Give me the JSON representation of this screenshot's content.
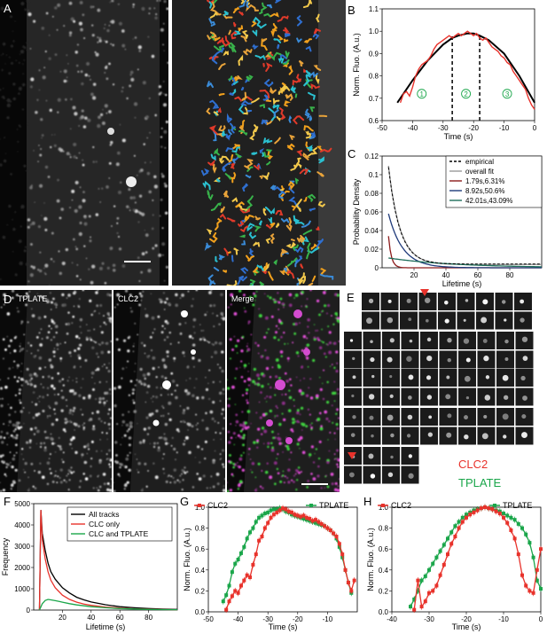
{
  "panels": {
    "A": {
      "letter": "A"
    },
    "B": {
      "letter": "B"
    },
    "C": {
      "letter": "C"
    },
    "D": {
      "letter": "D",
      "labels": [
        "TPLATE",
        "CLC2",
        "Merge"
      ]
    },
    "E": {
      "letter": "E",
      "labels": [
        "CLC2",
        "TPLATE"
      ],
      "colors": [
        "#e8322b",
        "#1aa64a"
      ]
    },
    "F": {
      "letter": "F"
    },
    "G": {
      "letter": "G"
    },
    "H": {
      "letter": "H"
    }
  },
  "chart_data": [
    {
      "panel": "B",
      "type": "line",
      "xlabel": "Time (s)",
      "ylabel": "Norm. Fluo. (A.u.)",
      "xlim": [
        -50,
        0
      ],
      "ylim": [
        0.6,
        1.1
      ],
      "xticks": [
        -50,
        -40,
        -30,
        -20,
        -10,
        0
      ],
      "yticks": [
        0.6,
        0.7,
        0.8,
        0.9,
        1.0,
        1.1
      ],
      "phase_lines": [
        -27,
        -18
      ],
      "phase_labels": [
        "1",
        "2",
        "3"
      ],
      "series": [
        {
          "color": "#e8322b",
          "x": [
            -44,
            -43,
            -42,
            -41,
            -40,
            -39,
            -38,
            -37,
            -36,
            -35,
            -34,
            -33,
            -32,
            -31,
            -30,
            -29,
            -28,
            -27,
            -26,
            -25,
            -24,
            -23,
            -22,
            -21,
            -20,
            -19,
            -18,
            -17,
            -16,
            -15,
            -14,
            -13,
            -12,
            -11,
            -10,
            -9,
            -8,
            -7,
            -6,
            -5,
            -4,
            -3,
            -2,
            -1,
            0
          ],
          "y": [
            0.68,
            0.72,
            0.73,
            0.71,
            0.75,
            0.8,
            0.83,
            0.85,
            0.86,
            0.87,
            0.89,
            0.92,
            0.94,
            0.95,
            0.96,
            0.97,
            0.98,
            0.97,
            0.98,
            0.99,
            0.98,
            0.99,
            1.0,
            0.99,
            0.98,
            0.99,
            0.97,
            0.96,
            0.97,
            0.95,
            0.93,
            0.92,
            0.91,
            0.89,
            0.88,
            0.86,
            0.85,
            0.82,
            0.8,
            0.78,
            0.76,
            0.74,
            0.7,
            0.67,
            0.65
          ]
        },
        {
          "color": "#000000",
          "x": [
            -45,
            -40,
            -35,
            -30,
            -27,
            -25,
            -22,
            -20,
            -18,
            -15,
            -10,
            -5,
            0
          ],
          "y": [
            0.68,
            0.78,
            0.87,
            0.94,
            0.97,
            0.98,
            0.99,
            0.99,
            0.98,
            0.96,
            0.9,
            0.8,
            0.68
          ]
        }
      ]
    },
    {
      "panel": "C",
      "type": "line",
      "xlabel": "Lifetime (s)",
      "ylabel": "Probability Density",
      "xlim": [
        0,
        100
      ],
      "ylim": [
        0,
        0.12
      ],
      "xticks": [
        20,
        40,
        60,
        80
      ],
      "yticks": [
        0,
        0.02,
        0.04,
        0.06,
        0.08,
        0.1,
        0.12
      ],
      "legend": [
        {
          "label": "empirical",
          "color": "#000000",
          "dash": true
        },
        {
          "label": "overall fit",
          "color": "#999999"
        },
        {
          "label": "1.79s,6.31%",
          "color": "#8b1a1a"
        },
        {
          "label": "8.92s,50.6%",
          "color": "#1f3a7a"
        },
        {
          "label": "42.01s,43.09%",
          "color": "#1f6e5a"
        }
      ],
      "components": [
        {
          "name": "overall fit",
          "color": "#999999",
          "a": 0.106,
          "tau": 7.2,
          "floor": 0.0035
        },
        {
          "name": "1.79s,6.31%",
          "color": "#8b1a1a",
          "a": 0.034,
          "tau": 1.8,
          "floor": 0
        },
        {
          "name": "8.92s,50.6%",
          "color": "#1f3a7a",
          "a": 0.058,
          "tau": 8.9,
          "floor": 0
        },
        {
          "name": "42.01s,43.09%",
          "color": "#1f6e5a",
          "a": 0.0105,
          "tau": 42,
          "floor": 0
        }
      ],
      "x_start": 4
    },
    {
      "panel": "F",
      "type": "line",
      "xlabel": "Lifetime (s)",
      "ylabel": "Frequency",
      "xlim": [
        0,
        100
      ],
      "ylim": [
        0,
        5000
      ],
      "xticks": [
        20,
        40,
        60,
        80
      ],
      "yticks": [
        0,
        1000,
        2000,
        3000,
        4000,
        5000
      ],
      "legend": [
        {
          "label": "All tracks",
          "color": "#000000"
        },
        {
          "label": "CLC only",
          "color": "#e8322b"
        },
        {
          "label": "CLC and TPLATE",
          "color": "#1aa64a"
        }
      ],
      "series": [
        {
          "name": "All tracks",
          "color": "#000000",
          "x": [
            4,
            5,
            6,
            8,
            10,
            12,
            15,
            20,
            25,
            30,
            35,
            40,
            50,
            60,
            70,
            80,
            90,
            100
          ],
          "y": [
            0,
            4700,
            3600,
            2800,
            2200,
            1800,
            1450,
            1050,
            800,
            600,
            480,
            380,
            250,
            160,
            110,
            70,
            45,
            30
          ]
        },
        {
          "name": "CLC only",
          "color": "#e8322b",
          "x": [
            4,
            5,
            6,
            8,
            10,
            12,
            15,
            20,
            25,
            30,
            35,
            40,
            50,
            60,
            70,
            80,
            90,
            100
          ],
          "y": [
            0,
            4700,
            3300,
            2400,
            1800,
            1400,
            1050,
            700,
            500,
            370,
            280,
            220,
            140,
            90,
            60,
            40,
            25,
            15
          ]
        },
        {
          "name": "CLC and TPLATE",
          "color": "#1aa64a",
          "x": [
            4,
            6,
            8,
            10,
            12,
            15,
            18,
            20,
            25,
            30,
            35,
            40,
            50,
            60,
            70,
            80,
            90,
            100
          ],
          "y": [
            0,
            300,
            450,
            500,
            480,
            440,
            400,
            370,
            300,
            240,
            200,
            160,
            110,
            70,
            50,
            30,
            20,
            15
          ]
        }
      ]
    },
    {
      "panel": "G",
      "type": "line",
      "xlabel": "Time (s)",
      "ylabel": "Norm. Fluo. (A.u.)",
      "xlim": [
        -50,
        0
      ],
      "ylim": [
        0,
        1.0
      ],
      "xticks": [
        -50,
        -40,
        -30,
        -20,
        -10
      ],
      "yticks": [
        0,
        0.2,
        0.4,
        0.6,
        0.8,
        1.0
      ],
      "legend": [
        {
          "label": "CLC2",
          "color": "#e8322b"
        },
        {
          "label": "TPLATE",
          "color": "#1aa64a"
        }
      ],
      "series": [
        {
          "name": "TPLATE",
          "color": "#1aa64a",
          "x": [
            -45,
            -44,
            -43,
            -42,
            -41,
            -40,
            -39,
            -38,
            -37,
            -36,
            -35,
            -34,
            -33,
            -32,
            -31,
            -30,
            -29,
            -28,
            -27,
            -26,
            -25,
            -24,
            -23,
            -22,
            -21,
            -20,
            -19,
            -18,
            -17,
            -16,
            -15,
            -14,
            -13,
            -12,
            -11,
            -10,
            -9,
            -8,
            -7,
            -6,
            -5,
            -4,
            -3,
            -2
          ],
          "y": [
            0.1,
            0.16,
            0.25,
            0.38,
            0.46,
            0.5,
            0.56,
            0.62,
            0.7,
            0.76,
            0.8,
            0.86,
            0.9,
            0.92,
            0.94,
            0.95,
            0.97,
            0.98,
            0.98,
            0.99,
            0.98,
            0.96,
            0.95,
            0.93,
            0.92,
            0.91,
            0.9,
            0.89,
            0.88,
            0.87,
            0.86,
            0.85,
            0.84,
            0.83,
            0.82,
            0.8,
            0.78,
            0.75,
            0.7,
            0.62,
            0.52,
            0.4,
            0.28,
            0.18
          ]
        },
        {
          "name": "CLC2",
          "color": "#e8322b",
          "x": [
            -44,
            -43,
            -42,
            -41,
            -40,
            -39,
            -38,
            -37,
            -36,
            -35,
            -34,
            -33,
            -32,
            -31,
            -30,
            -29,
            -28,
            -27,
            -26,
            -25,
            -24,
            -23,
            -22,
            -21,
            -20,
            -19,
            -18,
            -17,
            -16,
            -15,
            -14,
            -13,
            -12,
            -11,
            -10,
            -9,
            -8,
            -7,
            -6,
            -5,
            -4,
            -3,
            -2,
            -1
          ],
          "y": [
            0.02,
            0.1,
            0.15,
            0.2,
            0.18,
            0.25,
            0.3,
            0.35,
            0.33,
            0.45,
            0.55,
            0.68,
            0.72,
            0.8,
            0.85,
            0.9,
            0.93,
            0.95,
            0.97,
            0.99,
            0.98,
            0.96,
            0.95,
            0.93,
            0.92,
            0.91,
            0.92,
            0.9,
            0.89,
            0.87,
            0.88,
            0.86,
            0.84,
            0.82,
            0.8,
            0.78,
            0.75,
            0.72,
            0.65,
            0.55,
            0.4,
            0.28,
            0.2,
            0.3
          ]
        }
      ]
    },
    {
      "panel": "H",
      "type": "line",
      "xlabel": "Time (s)",
      "ylabel": "Norm. Fluo. (A.u.)",
      "xlim": [
        -40,
        0
      ],
      "ylim": [
        0,
        1.0
      ],
      "xticks": [
        -40,
        -30,
        -20,
        -10,
        0
      ],
      "yticks": [
        0,
        0.2,
        0.4,
        0.6,
        0.8,
        1.0
      ],
      "legend": [
        {
          "label": "CLC2",
          "color": "#e8322b"
        },
        {
          "label": "TPLATE",
          "color": "#1aa64a"
        }
      ],
      "series": [
        {
          "name": "TPLATE",
          "color": "#1aa64a",
          "x": [
            -35,
            -34,
            -33,
            -32,
            -31,
            -30,
            -29,
            -28,
            -27,
            -26,
            -25,
            -24,
            -23,
            -22,
            -21,
            -20,
            -19,
            -18,
            -17,
            -16,
            -15,
            -14,
            -13,
            -12,
            -11,
            -10,
            -9,
            -8,
            -7,
            -6,
            -5,
            -4,
            -3,
            -2,
            -1,
            0
          ],
          "y": [
            0.05,
            0.12,
            0.2,
            0.3,
            0.34,
            0.4,
            0.46,
            0.52,
            0.58,
            0.64,
            0.7,
            0.76,
            0.82,
            0.86,
            0.9,
            0.93,
            0.95,
            0.97,
            0.98,
            0.99,
            1.0,
            0.99,
            0.98,
            0.97,
            0.96,
            0.94,
            0.92,
            0.9,
            0.88,
            0.84,
            0.8,
            0.74,
            0.66,
            0.52,
            0.3,
            0.22
          ]
        },
        {
          "name": "CLC2",
          "color": "#e8322b",
          "x": [
            -34,
            -33,
            -32,
            -31,
            -30,
            -29,
            -28,
            -27,
            -26,
            -25,
            -24,
            -23,
            -22,
            -21,
            -20,
            -19,
            -18,
            -17,
            -16,
            -15,
            -14,
            -13,
            -12,
            -11,
            -10,
            -9,
            -8,
            -7,
            -6,
            -5,
            -4,
            -3,
            -2,
            -1,
            0
          ],
          "y": [
            0.02,
            0.3,
            0.05,
            0.1,
            0.18,
            0.2,
            0.25,
            0.35,
            0.45,
            0.55,
            0.65,
            0.72,
            0.8,
            0.86,
            0.9,
            0.93,
            0.95,
            0.97,
            0.99,
            1.0,
            0.99,
            0.98,
            0.96,
            0.94,
            0.9,
            0.85,
            0.78,
            0.7,
            0.55,
            0.35,
            0.25,
            0.2,
            0.18,
            0.4,
            0.6
          ]
        }
      ]
    }
  ]
}
